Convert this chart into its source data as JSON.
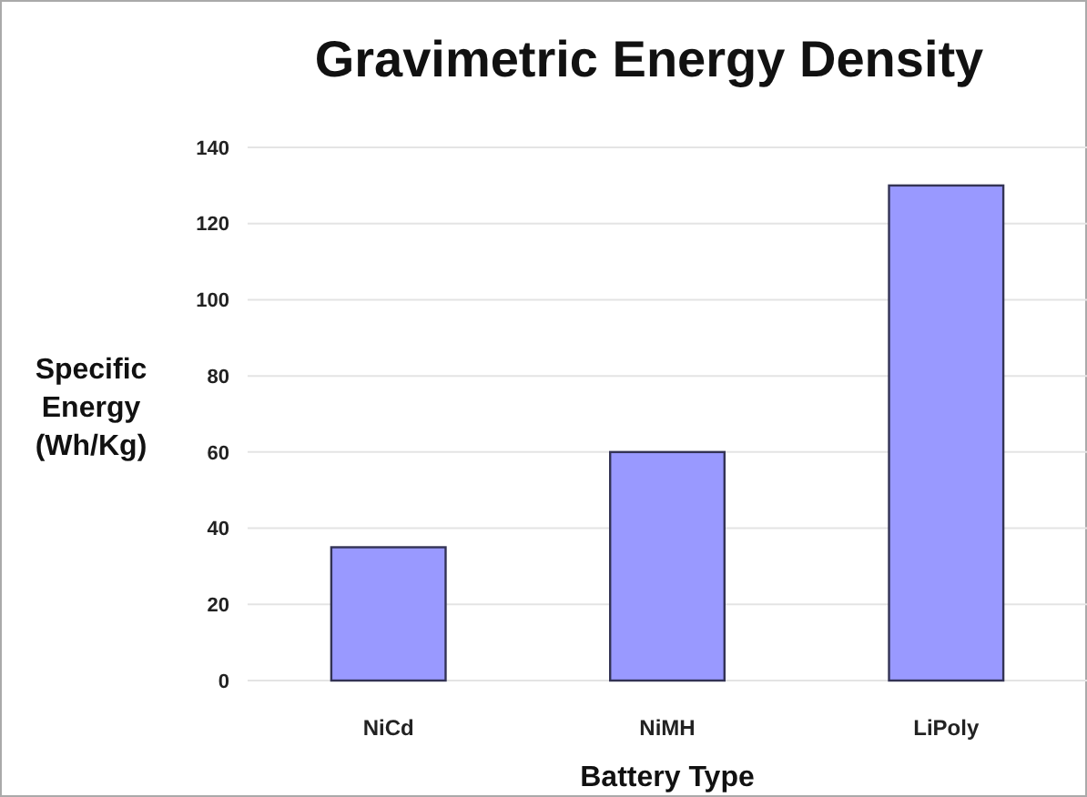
{
  "chart_data": {
    "type": "bar",
    "title": "Gravimetric Energy Density",
    "xlabel": "Battery Type",
    "ylabel": "Specific Energy (Wh/Kg)",
    "categories": [
      "NiCd",
      "NiMH",
      "LiPoly"
    ],
    "values": [
      35,
      60,
      130
    ],
    "color": "#9999ff",
    "ylim": [
      0,
      140
    ],
    "yticks": [
      0,
      20,
      40,
      60,
      80,
      100,
      120,
      140
    ],
    "grid": true
  }
}
